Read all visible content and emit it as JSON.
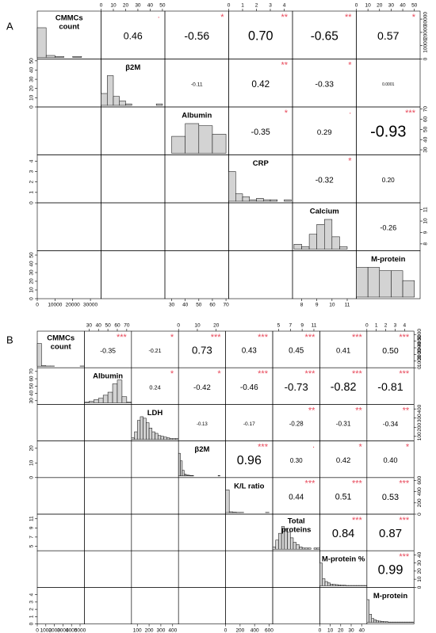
{
  "panels": [
    {
      "letter": "A",
      "variables": [
        {
          "label": [
            "CMMCs",
            "count"
          ],
          "range": [
            0,
            36000
          ],
          "ticks": [
            0,
            10000,
            20000,
            30000
          ],
          "bins": [
            0,
            5000,
            10000,
            15000,
            20000,
            25000,
            30000,
            35000
          ],
          "hist": [
            30,
            2,
            1,
            0,
            1,
            0,
            0
          ]
        },
        {
          "label": [
            "β2M"
          ],
          "range": [
            0,
            52
          ],
          "ticks": [
            0,
            10,
            20,
            30,
            40,
            50
          ],
          "bins": [
            0,
            5,
            10,
            15,
            20,
            25,
            30,
            35,
            40,
            45,
            50
          ],
          "hist": [
            8,
            20,
            6,
            3,
            1,
            0,
            0,
            0,
            0,
            1
          ]
        },
        {
          "label": [
            "Albumin"
          ],
          "range": [
            25,
            72
          ],
          "ticks": [
            30,
            40,
            50,
            60,
            70
          ],
          "bins": [
            30,
            40,
            50,
            60,
            70
          ],
          "hist": [
            8,
            14,
            13,
            9
          ]
        },
        {
          "label": [
            "CRP"
          ],
          "range": [
            0,
            4.6
          ],
          "ticks": [
            0,
            1,
            2,
            3,
            4
          ],
          "bins": [
            0,
            0.5,
            1,
            1.5,
            2,
            2.5,
            3,
            3.5,
            4,
            4.5
          ],
          "hist": [
            20,
            5,
            3,
            1,
            2,
            1,
            1,
            0,
            1
          ]
        },
        {
          "label": [
            "Calcium"
          ],
          "range": [
            7.4,
            11.6
          ],
          "ticks": [
            8,
            9,
            10,
            11
          ],
          "bins": [
            7.5,
            8,
            8.5,
            9,
            9.5,
            10,
            10.5,
            11
          ],
          "hist": [
            2,
            1,
            6,
            10,
            12,
            5,
            1
          ]
        },
        {
          "label": [
            "M-protein"
          ],
          "range": [
            0,
            55
          ],
          "ticks": [
            0,
            10,
            20,
            30,
            40,
            50
          ],
          "bins": [
            0,
            10,
            20,
            30,
            40,
            50
          ],
          "hist": [
            9,
            9,
            8,
            8,
            5
          ]
        }
      ],
      "r": [
        [
          "0.46",
          "-0.56",
          "0.70",
          "-0.65",
          "0.57"
        ],
        [
          "-0.11",
          "0.42",
          "-0.33",
          "0.0001"
        ],
        [
          "-0.35",
          "0.29",
          "-0.93"
        ],
        [
          "-0.32",
          "0.20"
        ],
        [
          "-0.26"
        ]
      ],
      "stars": [
        [
          "·",
          "*",
          "**",
          "**",
          "*"
        ],
        [
          null,
          "**",
          "*",
          null
        ],
        [
          "*",
          "·",
          "***"
        ],
        [
          "*",
          null
        ],
        [
          null
        ]
      ]
    },
    {
      "letter": "B",
      "variables": [
        {
          "label": [
            "CMMCs",
            "count"
          ],
          "range": [
            0,
            5500
          ],
          "ticks": [
            0,
            1000,
            2000,
            3000,
            4000,
            5000
          ],
          "bins": [
            0,
            500,
            1000,
            1500,
            2000,
            2500,
            3000,
            3500,
            4000,
            4500,
            5000,
            5500
          ],
          "hist": [
            120,
            3,
            1,
            1,
            0,
            0,
            0,
            0,
            0,
            0,
            1
          ]
        },
        {
          "label": [
            "Albumin"
          ],
          "range": [
            25,
            75
          ],
          "ticks": [
            30,
            40,
            50,
            60,
            70
          ],
          "bins": [
            25,
            30,
            35,
            40,
            45,
            50,
            55,
            60,
            65,
            70,
            75
          ],
          "hist": [
            1,
            2,
            4,
            6,
            10,
            14,
            25,
            30,
            8,
            1
          ]
        },
        {
          "label": [
            "LDH"
          ],
          "range": [
            50,
            450
          ],
          "ticks": [
            100,
            200,
            300,
            400
          ],
          "bins": [
            50,
            75,
            100,
            125,
            150,
            175,
            200,
            225,
            250,
            275,
            300,
            325,
            350,
            375,
            400,
            425,
            450
          ],
          "hist": [
            2,
            10,
            25,
            30,
            28,
            22,
            15,
            10,
            8,
            5,
            4,
            3,
            2,
            1,
            1,
            1
          ]
        },
        {
          "label": [
            "β2M"
          ],
          "range": [
            0,
            25
          ],
          "ticks": [
            0,
            10,
            20
          ],
          "bins": [
            0,
            1,
            2,
            3,
            4,
            5,
            6,
            7,
            8,
            9,
            10,
            11,
            12,
            13,
            14,
            15,
            16,
            17,
            18,
            19,
            20,
            21,
            22
          ],
          "hist": [
            60,
            40,
            15,
            5,
            3,
            2,
            1,
            1,
            0,
            0,
            0,
            0,
            0,
            0,
            0,
            0,
            0,
            0,
            0,
            0,
            0,
            1
          ]
        },
        {
          "label": [
            "K/L ratio"
          ],
          "range": [
            0,
            650
          ],
          "ticks": [
            0,
            200,
            400,
            600
          ],
          "bins": [
            0,
            50,
            100,
            150,
            200,
            250,
            300,
            350,
            400,
            450,
            500,
            550,
            600,
            650
          ],
          "hist": [
            120,
            4,
            2,
            1,
            1,
            0,
            0,
            0,
            0,
            0,
            0,
            1,
            0
          ]
        },
        {
          "label": [
            "Total",
            "proteins"
          ],
          "range": [
            4,
            12
          ],
          "ticks": [
            5,
            7,
            9,
            11
          ],
          "bins": [
            4,
            4.5,
            5,
            5.5,
            6,
            6.5,
            7,
            7.5,
            8,
            8.5,
            9,
            9.5,
            10,
            10.5,
            11,
            11.5,
            12
          ],
          "hist": [
            2,
            8,
            14,
            20,
            18,
            15,
            10,
            6,
            4,
            2,
            1,
            1,
            1,
            0,
            1,
            1
          ]
        },
        {
          "label": [
            "M-protein %"
          ],
          "range": [
            0,
            45
          ],
          "ticks": [
            0,
            10,
            20,
            30,
            40
          ],
          "bins": [
            0,
            2.5,
            5,
            7.5,
            10,
            12.5,
            15,
            17.5,
            20,
            22.5,
            25,
            27.5,
            30,
            32.5,
            35,
            37.5,
            40,
            42.5,
            45
          ],
          "hist": [
            80,
            25,
            15,
            10,
            6,
            5,
            4,
            3,
            2,
            2,
            1,
            1,
            1,
            1,
            1,
            1,
            1,
            1
          ]
        },
        {
          "label": [
            "M-protein"
          ],
          "range": [
            0,
            5
          ],
          "ticks": [
            0,
            1,
            2,
            3,
            4
          ],
          "bins": [
            0,
            0.25,
            0.5,
            0.75,
            1,
            1.25,
            1.5,
            1.75,
            2,
            2.25,
            2.5,
            2.75,
            3,
            3.25,
            3.5,
            3.75,
            4,
            4.25,
            4.5,
            4.75,
            5
          ],
          "hist": [
            70,
            25,
            12,
            8,
            5,
            4,
            3,
            2,
            2,
            1,
            1,
            1,
            1,
            1,
            1,
            1,
            1,
            1,
            1,
            1
          ]
        }
      ],
      "r": [
        [
          "-0.35",
          "-0.21",
          "0.73",
          "0.43",
          "0.45",
          "0.41",
          "0.50"
        ],
        [
          "0.24",
          "-0.42",
          "-0.46",
          "-0.73",
          "-0.82",
          "-0.81"
        ],
        [
          "-0.13",
          "-0.17",
          "-0.28",
          "-0.31",
          "-0.34"
        ],
        [
          "0.96",
          "0.30",
          "0.42",
          "0.40"
        ],
        [
          "0.44",
          "0.51",
          "0.53"
        ],
        [
          "0.84",
          "0.87"
        ],
        [
          "0.99"
        ]
      ],
      "stars": [
        [
          "***",
          "*",
          "***",
          "***",
          "***",
          "***",
          "***"
        ],
        [
          "*",
          "*",
          "***",
          "***",
          "***",
          "***"
        ],
        [
          null,
          null,
          "**",
          "**",
          "**"
        ],
        [
          "***",
          "·",
          "*",
          "*"
        ],
        [
          "***",
          "***",
          "***"
        ],
        [
          "***",
          "***"
        ],
        [
          "***"
        ]
      ]
    }
  ]
}
